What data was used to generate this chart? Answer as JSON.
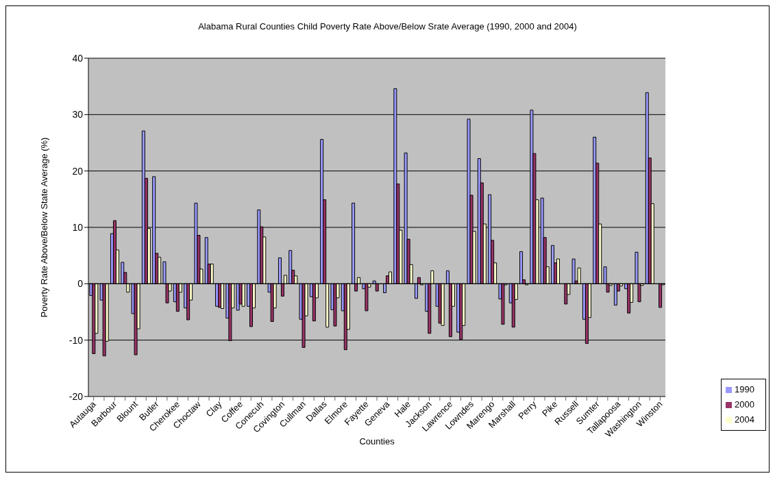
{
  "chart_data": {
    "type": "bar",
    "title": "Alabama Rural Counties Child Poverty Rate Above/Below  Srate Average (1990, 2000 and 2004)",
    "xlabel": "Counties",
    "ylabel": "Poverty Rate Above/Below State Average (%)",
    "categories": [
      "Autauga",
      null,
      "Barbour",
      null,
      "Blount",
      null,
      "Butler",
      null,
      "Cherokee",
      null,
      "Choctaw",
      null,
      "Clay",
      null,
      "Coffee",
      null,
      "Conecuh",
      null,
      "Covington",
      null,
      "Cullman",
      null,
      "Dallas",
      null,
      "Elmore",
      null,
      "Fayette",
      null,
      "Geneva",
      null,
      "Hale",
      null,
      "Jackson",
      null,
      "Lawrence",
      null,
      "Lowndes",
      null,
      "Marengo",
      null,
      "Marshall",
      null,
      "Perry",
      null,
      "Pike",
      null,
      "Russell",
      null,
      "Sumter",
      null,
      "Tallapoosa",
      null,
      "Washington",
      null,
      "Winston"
    ],
    "series": [
      {
        "name": "1990",
        "color": "#9999ff",
        "values": [
          -2.1,
          -2.9,
          8.9,
          3.8,
          -5.3,
          27.1,
          19.0,
          3.9,
          -3.2,
          -4.3,
          14.3,
          8.2,
          -4.0,
          -6.1,
          -4.7,
          -4.0,
          13.1,
          -1.5,
          4.6,
          5.9,
          -6.3,
          -2.3,
          25.6,
          -4.6,
          -4.8,
          14.3,
          -0.9,
          0.5,
          -1.6,
          34.6,
          23.2,
          -2.6,
          -4.9,
          -4.0,
          2.3,
          -8.6,
          29.2,
          22.2,
          15.8,
          -2.7,
          -3.4,
          5.7,
          30.8,
          15.2,
          6.8,
          null,
          4.4,
          -6.3,
          26.0,
          3.0,
          -3.8,
          -0.9,
          5.6,
          33.9,
          null
        ]
      },
      {
        "name": "2000",
        "color": "#993366",
        "values": [
          -12.4,
          -12.8,
          11.2,
          2.0,
          -12.6,
          18.7,
          5.4,
          -3.4,
          -4.9,
          -6.4,
          8.6,
          3.5,
          -4.2,
          -10.1,
          -3.6,
          -7.6,
          10.1,
          -6.7,
          -2.2,
          2.4,
          -11.3,
          -6.6,
          14.9,
          -7.5,
          -11.7,
          -1.3,
          -4.8,
          -1.3,
          1.4,
          17.7,
          7.9,
          1.1,
          -8.8,
          -7.0,
          -9.4,
          -9.9,
          15.7,
          17.9,
          7.7,
          -7.2,
          -7.7,
          0.7,
          23.1,
          8.2,
          3.7,
          -3.6,
          0.5,
          -10.6,
          21.4,
          -1.5,
          -1.3,
          -5.2,
          -3.2,
          22.3,
          -4.2
        ]
      },
      {
        "name": "2004",
        "color": "#ffffcc",
        "values": [
          -8.8,
          -10.2,
          6.0,
          -1.5,
          -8.0,
          9.8,
          4.7,
          -1.3,
          -1.5,
          -2.9,
          2.6,
          3.5,
          -4.4,
          -4.3,
          -4.0,
          -4.3,
          8.3,
          -4.3,
          1.5,
          1.4,
          -5.7,
          -2.5,
          -7.7,
          -2.5,
          -8.1,
          1.1,
          -0.6,
          null,
          2.1,
          9.5,
          3.4,
          -0.2,
          2.3,
          -7.4,
          -4.0,
          -7.4,
          9.3,
          10.6,
          3.7,
          -0.2,
          -2.8,
          -0.2,
          14.9,
          3.0,
          4.4,
          -1.9,
          2.8,
          -6.0,
          10.6,
          -0.3,
          -0.4,
          -3.3,
          -0.3,
          14.2,
          -0.2
        ]
      }
    ],
    "ylim": [
      -20,
      40
    ],
    "yticks": [
      -20,
      -10,
      0,
      10,
      20,
      30,
      40
    ],
    "grid": "y",
    "legend": "bottom right"
  }
}
